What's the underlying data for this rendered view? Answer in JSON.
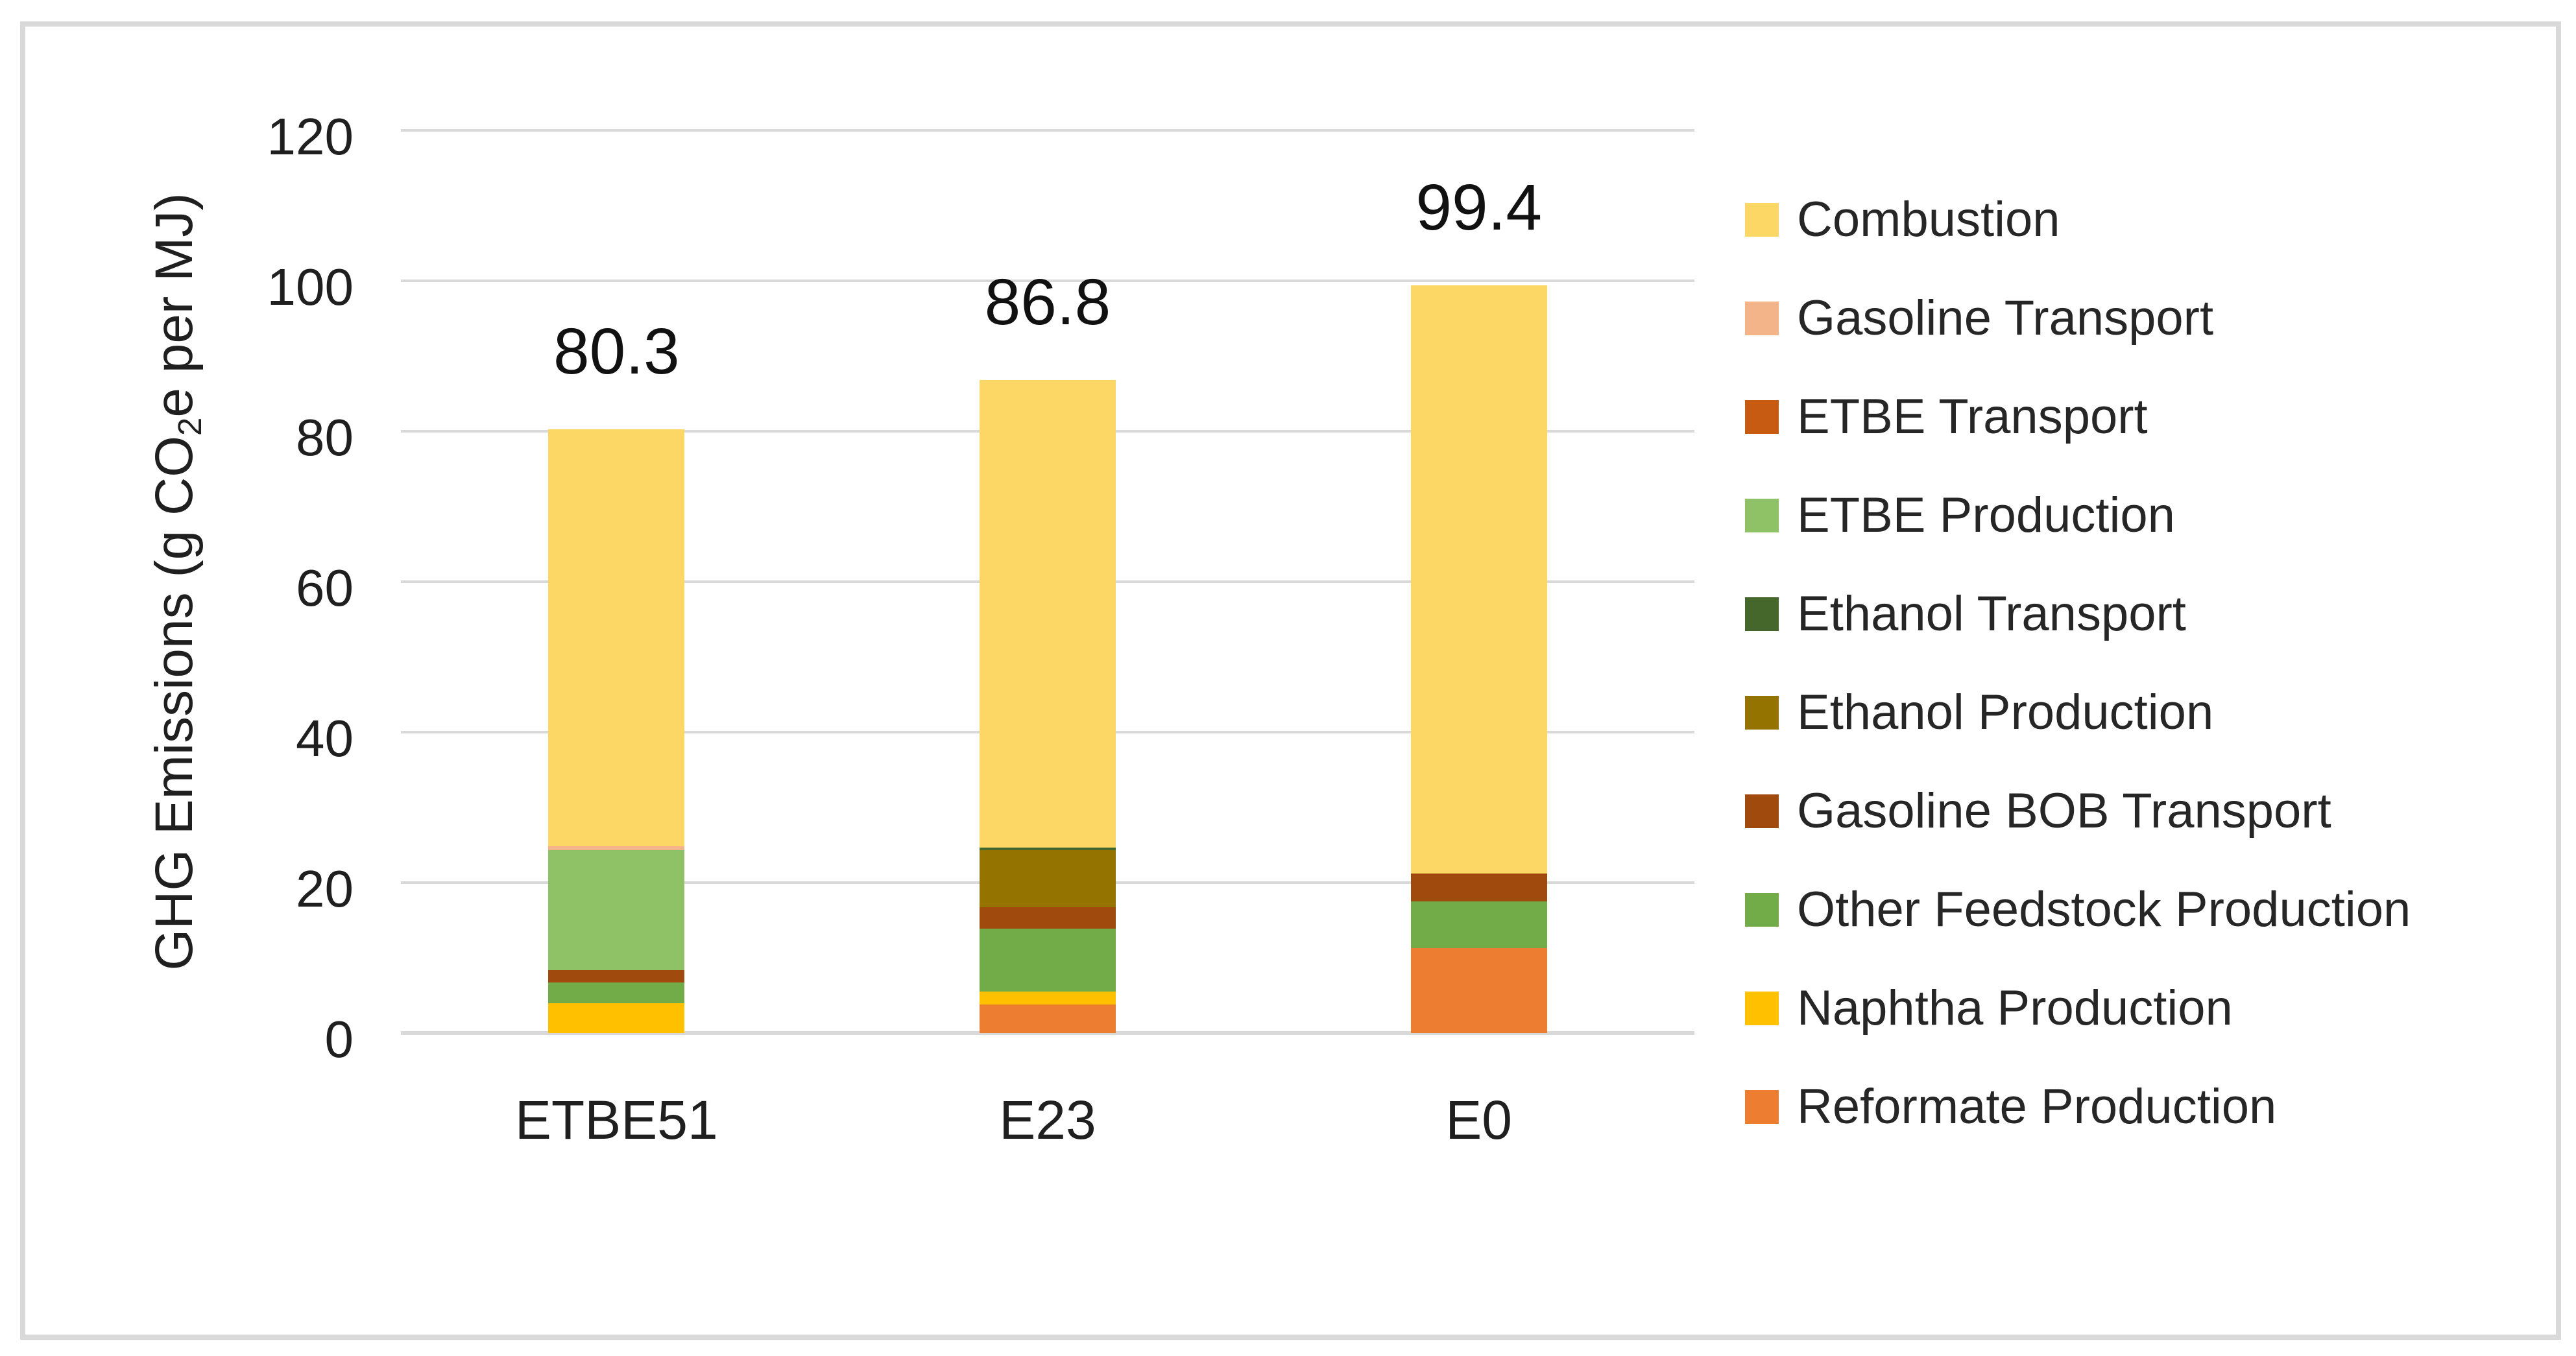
{
  "chart_data": {
    "type": "bar",
    "stacked": true,
    "title": "",
    "categories": [
      "ETBE51",
      "E23",
      "E0"
    ],
    "totals": [
      80.3,
      86.8,
      99.4
    ],
    "series": [
      {
        "name": "Reformate Production",
        "color": "#ED7D31",
        "values": [
          0,
          3.8,
          11.3
        ]
      },
      {
        "name": "Naphtha Production",
        "color": "#FFC000",
        "values": [
          4.0,
          1.7,
          0
        ]
      },
      {
        "name": "Other Feedstock Production",
        "color": "#71AC48",
        "values": [
          2.7,
          8.4,
          6.2
        ]
      },
      {
        "name": "Gasoline BOB Transport",
        "color": "#A04A0E",
        "values": [
          1.7,
          2.8,
          3.7
        ]
      },
      {
        "name": "Ethanol Production",
        "color": "#947300",
        "values": [
          0,
          7.6,
          0
        ]
      },
      {
        "name": "Ethanol Transport",
        "color": "#45672C",
        "values": [
          0,
          0.4,
          0
        ]
      },
      {
        "name": "ETBE Production",
        "color": "#8FC167",
        "values": [
          15.9,
          0,
          0
        ]
      },
      {
        "name": "ETBE Transport",
        "color": "#C85B12",
        "values": [
          0,
          0,
          0
        ]
      },
      {
        "name": "Gasoline Transport",
        "color": "#F2B488",
        "values": [
          0.5,
          0,
          0
        ]
      },
      {
        "name": "Combustion",
        "color": "#FCD765",
        "values": [
          55.5,
          62.1,
          78.2
        ]
      }
    ],
    "ylabel_prefix": "GHG Emissions (g CO",
    "ylabel_sub": "2",
    "ylabel_suffix": "e per MJ)",
    "ylim": [
      0,
      120
    ],
    "yticks": [
      0,
      20,
      40,
      60,
      80,
      100,
      120
    ],
    "grid": true,
    "legend_position": "right",
    "gridline_color": "#D9D9D9",
    "frame_color": "#D9D9D9"
  }
}
